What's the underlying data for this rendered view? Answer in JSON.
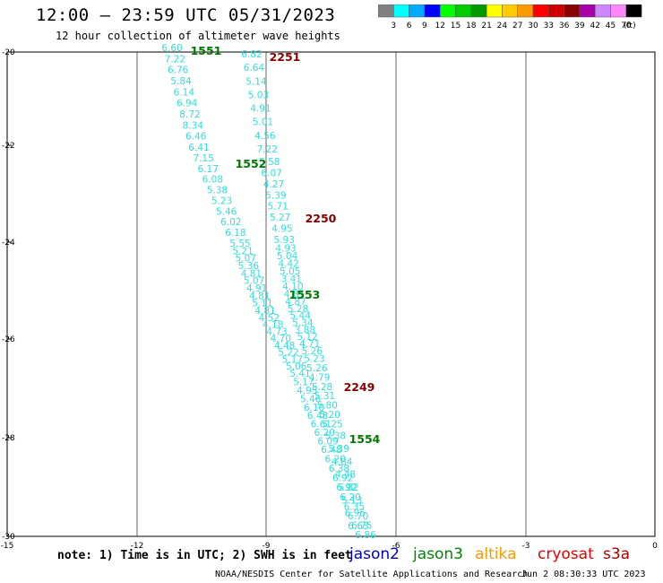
{
  "header": {
    "title": "12:00 — 23:59 UTC 05/31/2023",
    "subtitle": "12 hour collection of altimeter wave heights"
  },
  "legend": {
    "colors": [
      "#808080",
      "#00ffff",
      "#00aaff",
      "#0000ff",
      "#00ff00",
      "#00cc00",
      "#009900",
      "#ffff00",
      "#ffcc00",
      "#ff9900",
      "#ff0000",
      "#cc0000",
      "#880000",
      "#aa00aa",
      "#cc88ff",
      "#ff88ff",
      "#000000"
    ],
    "labels": [
      "3",
      "6",
      "9",
      "12",
      "15",
      "18",
      "21",
      "24",
      "27",
      "30",
      "33",
      "36",
      "39",
      "42",
      "45",
      "70",
      "(ft)"
    ]
  },
  "map": {
    "lat_ticks": [
      "-20",
      "-22",
      "-24",
      "-26",
      "-28",
      "-30"
    ],
    "lon_ticks": [
      "-15",
      "-12",
      "-9",
      "-6",
      "-3",
      "0"
    ],
    "pass_labels": [
      {
        "text": "1551",
        "color": "#007700"
      },
      {
        "text": "2251",
        "color": "#880000"
      },
      {
        "text": "1552",
        "color": "#007700"
      },
      {
        "text": "2250",
        "color": "#880000"
      },
      {
        "text": "1553",
        "color": "#007700"
      },
      {
        "text": "2249",
        "color": "#880000"
      },
      {
        "text": "1554",
        "color": "#007700"
      }
    ],
    "track_a": [
      "6.60",
      "7.22",
      "6.76",
      "5.84",
      "6.14",
      "6.94",
      "8.72",
      "8.34",
      "6.46",
      "6.41",
      "7.15",
      "6.17",
      "6.08",
      "5.38",
      "5.23",
      "5.46",
      "6.02",
      "6.18",
      "5.55",
      "5.21",
      "5.07",
      "5.36",
      "4.81",
      "5.07",
      "4.91",
      "4.81",
      "5.11",
      "4.81",
      "4.52",
      "4.18",
      "4.73",
      "4.70",
      "4.48",
      "5.22",
      "5.17",
      "5.06",
      "5.41",
      "5.17",
      "4.95",
      "5.46",
      "6.10",
      "6.48",
      "6.61",
      "6.20",
      "6.09",
      "6.48",
      "6.20",
      "6.38",
      "6.92",
      "6.92",
      "6.20",
      "6.35",
      "6.70",
      "6.75",
      "6.86"
    ],
    "track_b": [
      "6.82",
      "6.64",
      "5.14",
      "5.03",
      "4.91",
      "5.01",
      "4.56",
      "7.22",
      "5.58",
      "6.07",
      "4.27",
      "5.39",
      "5.71",
      "5.27",
      "4.95",
      "5.93",
      "4.93",
      "5.04",
      "4.42",
      "5.05",
      "3.41",
      "4.10",
      "4.85",
      "4.87",
      "5.28",
      "5.44",
      "5.34",
      "3.88",
      "5.12",
      "4.71",
      "5.26",
      "5.23",
      "5.26",
      "4.79",
      "5.28",
      "5.31",
      "5.80",
      "5.20",
      "5.25",
      "5.38",
      "5.39",
      "4.84",
      "4.48",
      "5.82",
      "5.13",
      "6.95",
      "6.63"
    ]
  },
  "footer": {
    "note": "note: 1) Time is in UTC; 2) SWH is in feet",
    "sats": [
      {
        "name": "jason2",
        "color": "#0000cc"
      },
      {
        "name": "jason3",
        "color": "#008800"
      },
      {
        "name": "altika",
        "color": "#ff9900"
      },
      {
        "name": "cryosat",
        "color": "#ee0000"
      },
      {
        "name": "s3a",
        "color": "#aa0000"
      }
    ],
    "credit": "NOAA/NESDIS Center for Satellite Applications and Research",
    "timestamp": "Jun  2 08:30:33 UTC 2023"
  }
}
